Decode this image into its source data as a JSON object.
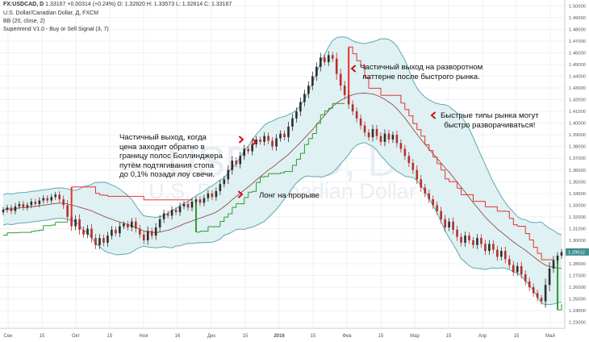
{
  "header": {
    "symbol": "FX:USDCAD, D",
    "ohlc_line": "1.33167  +0.00314 (+0.24%)  O: 1.32820  H: 1.33573  L: 1.32814  C: 1.33167",
    "name_line": "U.S. Dollar/Canadian Dollar, Д, FXCM",
    "bb_line": "BB (20, close, 2)",
    "st_line": "Supertrend V1.0 - Buy or Sell Signal (3, 7)"
  },
  "watermark": {
    "ticker": "USDCAD, D",
    "name": "U.S. Dollar/Canadian Dollar"
  },
  "annotations": {
    "partial_exit_bb": "Частичный выход, когда\nцена заходит обратно в\nграницу полос Боллинджера\nпутём подтягивания стопа\nдо 0,1% позади лоу свечи.",
    "breakout_long": "Лонг на прорыве",
    "partial_exit_reversal": "Частичный выход на разворотном\nпаттерне после быстрого рынка.",
    "fast_markets": "Быстрые типы рынка могут\nбыстро разворачиваться!"
  },
  "colors": {
    "bull": "#2e2e2e",
    "bear": "#b52e2e",
    "bb_fill": "#dff1f2",
    "bb_band": "#5fa8b4",
    "bb_basis": "#8a3b3b",
    "supertrend_up": "#2f9a2f",
    "supertrend_down": "#e8302f",
    "arrow": "#cc1111",
    "price_tag": "#3f8f8f"
  },
  "chart_data": {
    "type": "candlestick",
    "x_tick_labels": [
      "Сен",
      "15",
      "Окт",
      "15",
      "Ноя",
      "16",
      "Дек",
      "15",
      "2016",
      "15",
      "Фев",
      "15",
      "Мар",
      "15",
      "Апр",
      "15",
      "Май"
    ],
    "y_tick_labels": [
      "1.50000",
      "1.49000",
      "1.48000",
      "1.47000",
      "1.46000",
      "1.45000",
      "1.44000",
      "1.43000",
      "1.42000",
      "1.41000",
      "1.40000",
      "1.39000",
      "1.38000",
      "1.37000",
      "1.36000",
      "1.35000",
      "1.34000",
      "1.33000",
      "1.32000",
      "1.31000",
      "1.30000",
      "1.29000",
      "1.28000",
      "1.27000",
      "1.26000",
      "1.25000",
      "1.24000",
      "1.23000"
    ],
    "ylim": [
      1.225,
      1.505
    ],
    "last_price": "1.29012",
    "current_price": 1.29012,
    "indicators": [
      "Bollinger Bands (20, close, 2)",
      "Supertrend (3, 7)"
    ],
    "close_path": [
      1.326,
      1.328,
      1.325,
      1.329,
      1.331,
      1.328,
      1.33,
      1.333,
      1.331,
      1.334,
      1.336,
      1.334,
      1.337,
      1.339,
      1.335,
      1.33,
      1.32,
      1.312,
      1.318,
      1.309,
      1.305,
      1.31,
      1.302,
      1.296,
      1.302,
      1.298,
      1.304,
      1.309,
      1.306,
      1.312,
      1.314,
      1.311,
      1.316,
      1.31,
      1.305,
      1.3,
      1.308,
      1.304,
      1.311,
      1.318,
      1.323,
      1.321,
      1.326,
      1.324,
      1.329,
      1.331,
      1.328,
      1.333,
      1.335,
      1.332,
      1.336,
      1.34,
      1.337,
      1.342,
      1.348,
      1.352,
      1.36,
      1.368,
      1.365,
      1.372,
      1.378,
      1.376,
      1.382,
      1.386,
      1.384,
      1.389,
      1.385,
      1.38,
      1.387,
      1.391,
      1.388,
      1.397,
      1.404,
      1.41,
      1.418,
      1.425,
      1.432,
      1.44,
      1.448,
      1.456,
      1.452,
      1.458,
      1.455,
      1.442,
      1.432,
      1.424,
      1.416,
      1.41,
      1.404,
      1.398,
      1.392,
      1.388,
      1.395,
      1.389,
      1.384,
      1.391,
      1.386,
      1.39,
      1.383,
      1.378,
      1.372,
      1.366,
      1.36,
      1.352,
      1.345,
      1.34,
      1.335,
      1.33,
      1.325,
      1.318,
      1.311,
      1.316,
      1.309,
      1.303,
      1.298,
      1.304,
      1.3,
      1.296,
      1.302,
      1.297,
      1.291,
      1.297,
      1.292,
      1.286,
      1.291,
      1.284,
      1.279,
      1.273,
      1.278,
      1.271,
      1.265,
      1.26,
      1.255,
      1.251,
      1.248,
      1.262,
      1.276,
      1.283,
      1.287,
      1.29
    ]
  }
}
